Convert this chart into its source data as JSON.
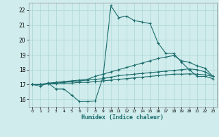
{
  "xlabel": "Humidex (Indice chaleur)",
  "xlim": [
    -0.5,
    23.5
  ],
  "ylim": [
    15.5,
    22.5
  ],
  "yticks": [
    16,
    17,
    18,
    19,
    20,
    21,
    22
  ],
  "xticks": [
    0,
    1,
    2,
    3,
    4,
    5,
    6,
    7,
    8,
    9,
    10,
    11,
    12,
    13,
    14,
    15,
    16,
    17,
    18,
    19,
    20,
    21,
    22,
    23
  ],
  "bg_color": "#d0ecec",
  "grid_color": "#b0d8d8",
  "line_color": "#1a6b6b",
  "series": [
    {
      "x": [
        0,
        1,
        2,
        3,
        4,
        5,
        6,
        7,
        8,
        9,
        10,
        11,
        12,
        13,
        14,
        15,
        16,
        17,
        18,
        19,
        20,
        21,
        22,
        23
      ],
      "y": [
        17.0,
        16.9,
        17.1,
        16.7,
        16.7,
        16.3,
        15.85,
        15.85,
        15.9,
        17.5,
        22.3,
        21.5,
        21.6,
        21.3,
        21.2,
        21.1,
        19.8,
        19.1,
        19.1,
        18.5,
        18.0,
        17.55,
        17.55,
        17.4
      ]
    },
    {
      "x": [
        0,
        1,
        2,
        3,
        4,
        5,
        6,
        7,
        8,
        9,
        10,
        11,
        12,
        13,
        14,
        15,
        16,
        17,
        18,
        19,
        20,
        21,
        22,
        23
      ],
      "y": [
        17.0,
        17.0,
        17.1,
        17.15,
        17.2,
        17.25,
        17.3,
        17.35,
        17.55,
        17.7,
        17.85,
        18.0,
        18.15,
        18.3,
        18.45,
        18.6,
        18.75,
        18.85,
        18.95,
        18.6,
        18.5,
        18.25,
        18.1,
        17.55
      ]
    },
    {
      "x": [
        0,
        1,
        2,
        3,
        4,
        5,
        6,
        7,
        8,
        9,
        10,
        11,
        12,
        13,
        14,
        15,
        16,
        17,
        18,
        19,
        20,
        21,
        22,
        23
      ],
      "y": [
        17.0,
        17.0,
        17.05,
        17.1,
        17.15,
        17.2,
        17.25,
        17.3,
        17.35,
        17.4,
        17.5,
        17.6,
        17.65,
        17.7,
        17.75,
        17.8,
        17.85,
        17.9,
        17.95,
        18.0,
        18.05,
        18.0,
        17.85,
        17.55
      ]
    },
    {
      "x": [
        0,
        1,
        2,
        3,
        4,
        5,
        6,
        7,
        8,
        9,
        10,
        11,
        12,
        13,
        14,
        15,
        16,
        17,
        18,
        19,
        20,
        21,
        22,
        23
      ],
      "y": [
        17.0,
        17.0,
        17.05,
        17.05,
        17.1,
        17.1,
        17.15,
        17.15,
        17.2,
        17.25,
        17.3,
        17.35,
        17.4,
        17.45,
        17.5,
        17.55,
        17.6,
        17.65,
        17.7,
        17.7,
        17.72,
        17.7,
        17.65,
        17.55
      ]
    }
  ]
}
